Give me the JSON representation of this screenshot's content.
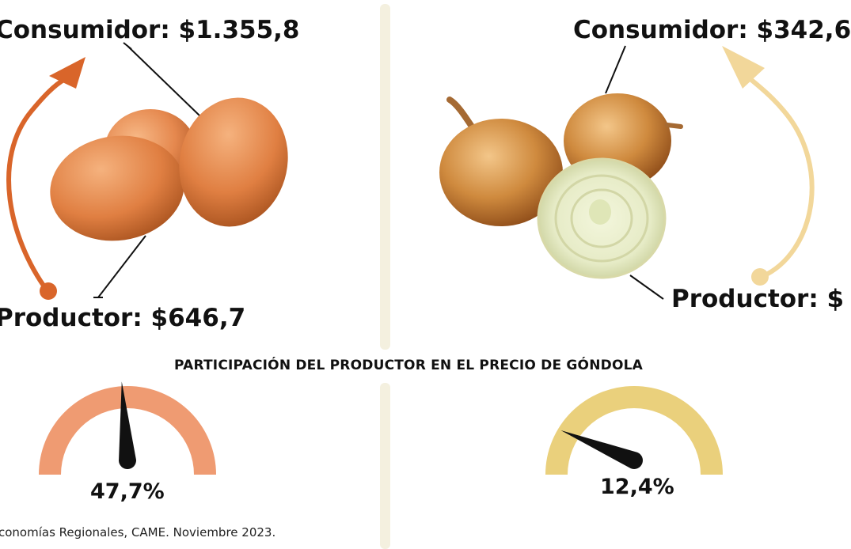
{
  "left_product": {
    "name": "huevos",
    "consumer_label": "Consumidor: $1.355,8",
    "producer_label": "Productor: $646,7",
    "arrow_color": "#d9652a",
    "gauge_color": "#ef9b72",
    "share_percent": 47.7,
    "share_label": "47,7%"
  },
  "right_product": {
    "name": "cebolla",
    "consumer_label": "Consumidor: $342,6",
    "producer_label": "Productor: $",
    "arrow_color": "#f2d79a",
    "gauge_color": "#ead07c",
    "share_percent": 12.4,
    "share_label": "12,4%"
  },
  "section_title": "PARTICIPACIÓN DEL PRODUCTOR EN EL PRECIO DE GÓNDOLA",
  "source": "conomías Regionales, CAME. Noviembre 2023.",
  "icons": {
    "eggs": "eggs-illustration",
    "onions": "onions-illustration",
    "gauge_needle": "gauge-needle-icon"
  },
  "colors": {
    "divider": "#f4f0df",
    "needle": "#111111"
  }
}
